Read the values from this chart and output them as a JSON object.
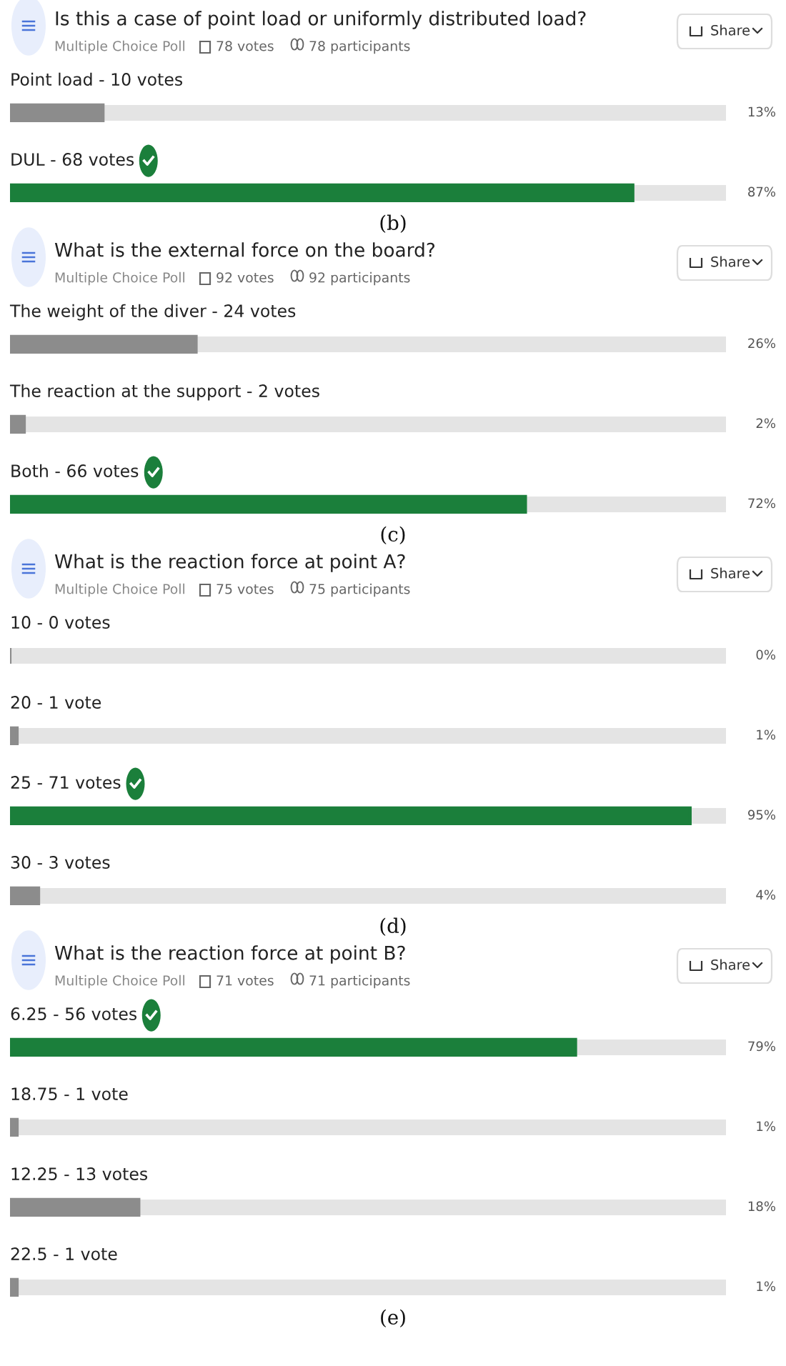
{
  "chart_data": [
    {
      "type": "bar",
      "orientation": "horizontal",
      "title": "Is this a case of point load or uniformly distributed load?",
      "subtitle": "Multiple Choice Poll",
      "annotations": [
        "78 votes",
        "78 participants",
        "Share",
        "(b)"
      ],
      "categories": [
        "Point load - 10 votes",
        "DUL - 68 votes"
      ],
      "values": [
        13,
        87
      ],
      "colors": [
        "#8c8c8c",
        "#1b7f3b"
      ],
      "value_labels": [
        "13%",
        "87%"
      ],
      "xlim": [
        0,
        100
      ]
    },
    {
      "type": "bar",
      "orientation": "horizontal",
      "title": "What is the external force on the board?",
      "subtitle": "Multiple Choice Poll",
      "annotations": [
        "92 votes",
        "92 participants",
        "Share",
        "(c)"
      ],
      "categories": [
        "The weight of the diver - 24 votes",
        "The reaction at the support - 2 votes",
        "Both - 66 votes"
      ],
      "values": [
        26,
        2,
        72
      ],
      "colors": [
        "#8c8c8c",
        "#8c8c8c",
        "#1b7f3b"
      ],
      "value_labels": [
        "26%",
        "2%",
        "72%"
      ],
      "xlim": [
        0,
        100
      ]
    },
    {
      "type": "bar",
      "orientation": "horizontal",
      "title": "What is the reaction force at point A?",
      "subtitle": "Multiple Choice Poll",
      "annotations": [
        "75 votes",
        "75 participants",
        "Share",
        "(d)"
      ],
      "categories": [
        "10 - 0 votes",
        "20 - 1 vote",
        "25 - 71 votes",
        "30 - 3 votes"
      ],
      "values": [
        0,
        1,
        95,
        4
      ],
      "colors": [
        "#8c8c8c",
        "#8c8c8c",
        "#1b7f3b",
        "#8c8c8c"
      ],
      "value_labels": [
        "0%",
        "1%",
        "95%",
        "4%"
      ],
      "xlim": [
        0,
        100
      ]
    },
    {
      "type": "bar",
      "orientation": "horizontal",
      "title": "What is the reaction force at point B?",
      "subtitle": "Multiple Choice Poll",
      "annotations": [
        "71 votes",
        "71 participants",
        "Share",
        "(e)"
      ],
      "categories": [
        "6.25 - 56 votes",
        "18.75 - 1 vote",
        "12.25 - 13 votes",
        "22.5 - 1 vote"
      ],
      "values": [
        79,
        1,
        18,
        1
      ],
      "colors": [
        "#1b7f3b",
        "#8c8c8c",
        "#8c8c8c",
        "#8c8c8c"
      ],
      "value_labels": [
        "79%",
        "1%",
        "18%",
        "1%"
      ],
      "xlim": [
        0,
        100
      ]
    }
  ]
}
